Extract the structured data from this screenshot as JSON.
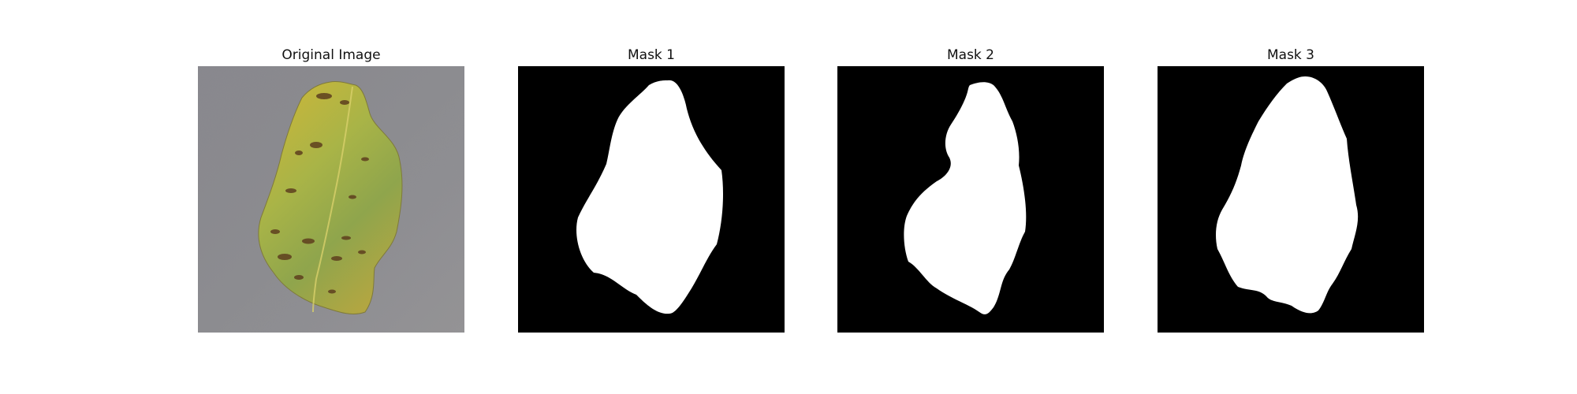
{
  "figure": {
    "panels": [
      {
        "title": "Original Image",
        "content": "photo of a yellow-green leaf with brown spots on grey background"
      },
      {
        "title": "Mask 1",
        "content": "binary mask"
      },
      {
        "title": "Mask 2",
        "content": "binary mask"
      },
      {
        "title": "Mask 3",
        "content": "binary mask"
      }
    ]
  },
  "colors": {
    "background": "#ffffff",
    "mask_background": "#000000",
    "mask_foreground": "#ffffff",
    "photo_background": "#8f8f93",
    "leaf_base": "#b9b43a",
    "leaf_spot": "#6b4a22"
  }
}
